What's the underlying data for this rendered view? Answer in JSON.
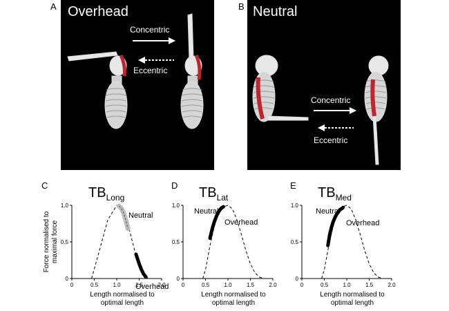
{
  "panels": {
    "A": {
      "letter": "A",
      "title": "Overhead",
      "concentric": "Concentric",
      "eccentric": "Eccentric"
    },
    "B": {
      "letter": "B",
      "title": "Neutral",
      "concentric": "Concentric",
      "eccentric": "Eccentric"
    }
  },
  "shared_axes": {
    "ylabel_line1": "Force normalised to",
    "ylabel_line2": "maximal force",
    "xlabel_line1": "Length normalised to",
    "xlabel_line2": "optimal length"
  },
  "colors": {
    "muscle": "#c0242c",
    "background": "#000000",
    "bone": "#e8e8e8",
    "grey_band": "#bdbdbd"
  },
  "chart_data": [
    {
      "type": "line",
      "panel": "C",
      "title_main": "TB",
      "title_sub": "Long",
      "xlim": [
        0,
        2.0
      ],
      "ylim": [
        0,
        1.0
      ],
      "xticks": [
        "0",
        "0.5",
        "1.0",
        "1.5",
        "2.0"
      ],
      "yticks": [
        "0",
        "0.5",
        "1.0"
      ],
      "ytick_values": [
        0,
        0.5,
        1.0
      ],
      "xtick_values": [
        0,
        0.5,
        1.0,
        1.5,
        2.0
      ],
      "curve": {
        "x": [
          0.44,
          0.6,
          0.8,
          1.0,
          1.1,
          1.2,
          1.3,
          1.4,
          1.5,
          1.6,
          1.7
        ],
        "y": [
          0,
          0.35,
          0.8,
          1.0,
          0.98,
          0.85,
          0.62,
          0.38,
          0.18,
          0.04,
          0
        ]
      },
      "series": [
        {
          "name": "Neutral",
          "x": [
            1.05,
            1.1,
            1.15,
            1.2,
            1.25
          ],
          "y": [
            0.99,
            0.96,
            0.9,
            0.8,
            0.68
          ],
          "style": "grey"
        },
        {
          "name": "Overhead",
          "x": [
            1.43,
            1.5,
            1.55,
            1.6,
            1.65
          ],
          "y": [
            0.33,
            0.2,
            0.12,
            0.06,
            0.02
          ],
          "style": "black"
        }
      ]
    },
    {
      "type": "line",
      "panel": "D",
      "title_main": "TB",
      "title_sub": "Lat",
      "xlim": [
        0,
        2.0
      ],
      "ylim": [
        0,
        1.0
      ],
      "xticks": [
        "0",
        "0.5",
        "1.0",
        "1.5",
        "2.0"
      ],
      "yticks": [
        "0",
        "0.5",
        "1.0"
      ],
      "ytick_values": [
        0,
        0.5,
        1.0
      ],
      "xtick_values": [
        0,
        0.5,
        1.0,
        1.5,
        2.0
      ],
      "curve": {
        "x": [
          0.44,
          0.5,
          0.6,
          0.7,
          0.8,
          0.9,
          1.0,
          1.1,
          1.2,
          1.3,
          1.4,
          1.5,
          1.6,
          1.7,
          1.8
        ],
        "y": [
          0,
          0.12,
          0.45,
          0.72,
          0.9,
          0.98,
          1.0,
          0.95,
          0.8,
          0.6,
          0.38,
          0.2,
          0.08,
          0.02,
          0
        ]
      },
      "series": [
        {
          "name": "Neutral",
          "x": [
            0.6,
            0.65,
            0.7,
            0.75,
            0.8,
            0.85
          ],
          "y": [
            0.55,
            0.68,
            0.78,
            0.86,
            0.92,
            0.96
          ],
          "style": "black"
        },
        {
          "name": "Overhead",
          "x": [
            0.85,
            0.9
          ],
          "y": [
            0.96,
            0.98
          ],
          "style": "black"
        }
      ]
    },
    {
      "type": "line",
      "panel": "E",
      "title_main": "TB",
      "title_sub": "Med",
      "xlim": [
        0,
        2.0
      ],
      "ylim": [
        0,
        1.0
      ],
      "xticks": [
        "0",
        "0.5",
        "1.0",
        "1.5",
        "2.0"
      ],
      "yticks": [
        "0",
        "0.5",
        "1.0"
      ],
      "ytick_values": [
        0,
        0.5,
        1.0
      ],
      "xtick_values": [
        0,
        0.5,
        1.0,
        1.5,
        2.0
      ],
      "curve": {
        "x": [
          0.44,
          0.5,
          0.6,
          0.7,
          0.8,
          0.9,
          1.0,
          1.1,
          1.2,
          1.3,
          1.4,
          1.5,
          1.6,
          1.7,
          1.8
        ],
        "y": [
          0,
          0.12,
          0.45,
          0.72,
          0.9,
          0.98,
          1.0,
          0.95,
          0.8,
          0.6,
          0.38,
          0.2,
          0.08,
          0.02,
          0
        ]
      },
      "series": [
        {
          "name": "Neutral",
          "x": [
            0.58,
            0.62,
            0.66,
            0.7,
            0.75,
            0.8,
            0.85,
            0.9
          ],
          "y": [
            0.45,
            0.6,
            0.7,
            0.78,
            0.85,
            0.9,
            0.94,
            0.96
          ],
          "style": "black"
        },
        {
          "name": "Overhead",
          "x": [
            0.9,
            0.92
          ],
          "y": [
            0.96,
            0.97
          ],
          "style": "black"
        }
      ]
    }
  ],
  "curve_label_positions": [
    {
      "neutral_label": "Neutral",
      "overhead_label": "Overhead"
    },
    {
      "neutral_label": "Neutral",
      "overhead_label": "Overhead"
    },
    {
      "neutral_label": "Neutral",
      "overhead_label": "Overhead"
    }
  ]
}
